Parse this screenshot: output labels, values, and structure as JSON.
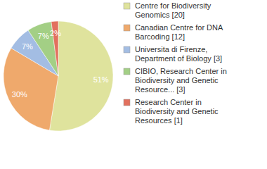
{
  "chart_data": {
    "type": "pie",
    "categories": [
      "Centre for Biodiversity Genomics [20]",
      "Canadian Centre for DNA Barcoding [12]",
      "Universita di Firenze, Department of Biology [3]",
      "CIBIO, Research Center in Biodiversity and Genetic Resource... [3]",
      "Research Center in Biodiversity and Genetic Resources [1]"
    ],
    "values": [
      51,
      30,
      7,
      7,
      2
    ],
    "value_labels": [
      "51%",
      "30%",
      "7%",
      "7%",
      "2%"
    ],
    "data_labels": true,
    "colors": [
      "#dfe39d",
      "#efa96c",
      "#a3bde3",
      "#a3cf85",
      "#e2705e"
    ]
  }
}
